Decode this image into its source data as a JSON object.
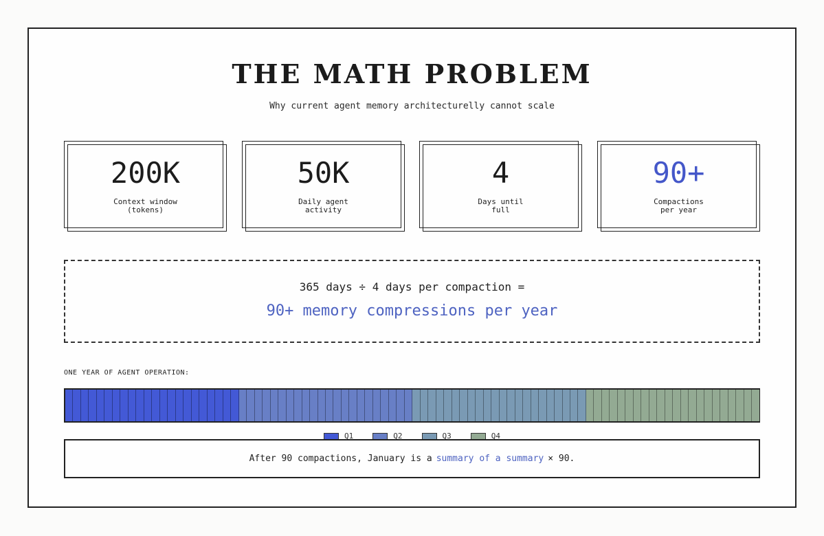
{
  "title": "THE MATH PROBLEM",
  "subtitle": "Why current agent memory architecturelly cannot scale",
  "stats": [
    {
      "value": "200K",
      "label": "Context window\n(tokens)"
    },
    {
      "value": "50K",
      "label": "Daily agent\nactivity"
    },
    {
      "value": "4",
      "label": "Days until\nfull"
    },
    {
      "value": "90+",
      "label": "Compactions\nper year"
    }
  ],
  "formula": {
    "equation": "365 days ÷ 4 days per compaction =",
    "result": "90+ memory compressions per year"
  },
  "year_bar": {
    "label": "ONE YEAR OF AGENT OPERATION:",
    "quarters": [
      {
        "name": "Q1",
        "color": "#4359d6"
      },
      {
        "name": "Q2",
        "color": "#687fc6"
      },
      {
        "name": "Q3",
        "color": "#7a9ab4"
      },
      {
        "name": "Q4",
        "color": "#93aa93"
      }
    ],
    "segments_per_quarter": 22
  },
  "note": {
    "before": "After 90 compactions, January is a",
    "highlight": "summary of a summary",
    "after": "× 90."
  },
  "colors": {
    "accent": "#4e63c1",
    "stat_accent": "#4457c9"
  }
}
